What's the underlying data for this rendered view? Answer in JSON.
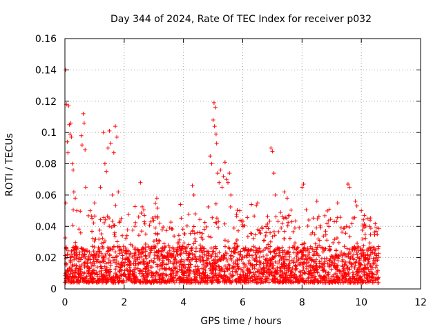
{
  "chart_data": {
    "type": "scatter",
    "title": "Day 344 of 2024, Rate Of TEC Index for receiver p032",
    "xlabel": "GPS time / hours",
    "ylabel": "ROTI / TECUs",
    "xlim": [
      0,
      12
    ],
    "ylim": [
      0,
      0.16
    ],
    "xticks": [
      0,
      2,
      4,
      6,
      8,
      10,
      12
    ],
    "xtick_labels": [
      "0",
      "2",
      "4",
      "6",
      "8",
      "10",
      "12"
    ],
    "yticks": [
      0,
      0.02,
      0.04,
      0.06,
      0.08,
      0.1,
      0.12,
      0.14,
      0.16
    ],
    "ytick_labels": [
      "0",
      "0.02",
      "0.04",
      "0.06",
      "0.08",
      "0.1",
      "0.12",
      "0.14",
      "0.16"
    ],
    "grid": true,
    "marker": "plus",
    "color": "#ff0000",
    "series": [
      {
        "name": "ROTI",
        "data_extent_hours": [
          0,
          10.6
        ],
        "baseline_range": [
          0.004,
          0.035
        ],
        "points": [
          [
            0.02,
            0.14
          ],
          [
            0.05,
            0.118
          ],
          [
            0.08,
            0.094
          ],
          [
            0.1,
            0.087
          ],
          [
            0.12,
            0.117
          ],
          [
            0.15,
            0.105
          ],
          [
            0.17,
            0.099
          ],
          [
            0.2,
            0.106
          ],
          [
            0.22,
            0.097
          ],
          [
            0.25,
            0.08
          ],
          [
            0.28,
            0.076
          ],
          [
            0.3,
            0.062
          ],
          [
            0.03,
            0.055
          ],
          [
            0.35,
            0.058
          ],
          [
            0.4,
            0.05
          ],
          [
            0.55,
            0.098
          ],
          [
            0.58,
            0.092
          ],
          [
            0.62,
            0.112
          ],
          [
            0.65,
            0.106
          ],
          [
            0.68,
            0.089
          ],
          [
            0.7,
            0.065
          ],
          [
            0.85,
            0.05
          ],
          [
            1.0,
            0.055
          ],
          [
            1.2,
            0.065
          ],
          [
            1.3,
            0.1
          ],
          [
            1.35,
            0.08
          ],
          [
            1.4,
            0.075
          ],
          [
            1.45,
            0.09
          ],
          [
            1.5,
            0.101
          ],
          [
            1.55,
            0.093
          ],
          [
            1.6,
            0.06
          ],
          [
            1.65,
            0.087
          ],
          [
            1.7,
            0.104
          ],
          [
            1.75,
            0.097
          ],
          [
            1.8,
            0.062
          ],
          [
            1.9,
            0.045
          ],
          [
            2.55,
            0.068
          ],
          [
            3.1,
            0.058
          ],
          [
            3.2,
            0.042
          ],
          [
            3.9,
            0.054
          ],
          [
            4.3,
            0.066
          ],
          [
            4.35,
            0.06
          ],
          [
            4.4,
            0.048
          ],
          [
            4.9,
            0.085
          ],
          [
            4.95,
            0.08
          ],
          [
            5.0,
            0.108
          ],
          [
            5.03,
            0.119
          ],
          [
            5.05,
            0.104
          ],
          [
            5.08,
            0.116
          ],
          [
            5.1,
            0.099
          ],
          [
            5.12,
            0.093
          ],
          [
            5.15,
            0.074
          ],
          [
            5.2,
            0.068
          ],
          [
            5.25,
            0.076
          ],
          [
            5.3,
            0.065
          ],
          [
            5.35,
            0.072
          ],
          [
            5.4,
            0.081
          ],
          [
            5.45,
            0.07
          ],
          [
            5.5,
            0.068
          ],
          [
            5.55,
            0.074
          ],
          [
            5.6,
            0.06
          ],
          [
            5.9,
            0.05
          ],
          [
            6.5,
            0.055
          ],
          [
            6.95,
            0.09
          ],
          [
            7.0,
            0.088
          ],
          [
            7.05,
            0.074
          ],
          [
            7.1,
            0.06
          ],
          [
            7.4,
            0.062
          ],
          [
            7.5,
            0.058
          ],
          [
            8.0,
            0.065
          ],
          [
            8.05,
            0.067
          ],
          [
            8.5,
            0.056
          ],
          [
            9.2,
            0.055
          ],
          [
            9.55,
            0.067
          ],
          [
            9.6,
            0.065
          ],
          [
            9.8,
            0.056
          ],
          [
            9.85,
            0.053
          ],
          [
            10.0,
            0.05
          ],
          [
            10.1,
            0.047
          ],
          [
            10.2,
            0.045
          ],
          [
            10.3,
            0.044
          ]
        ]
      }
    ]
  }
}
